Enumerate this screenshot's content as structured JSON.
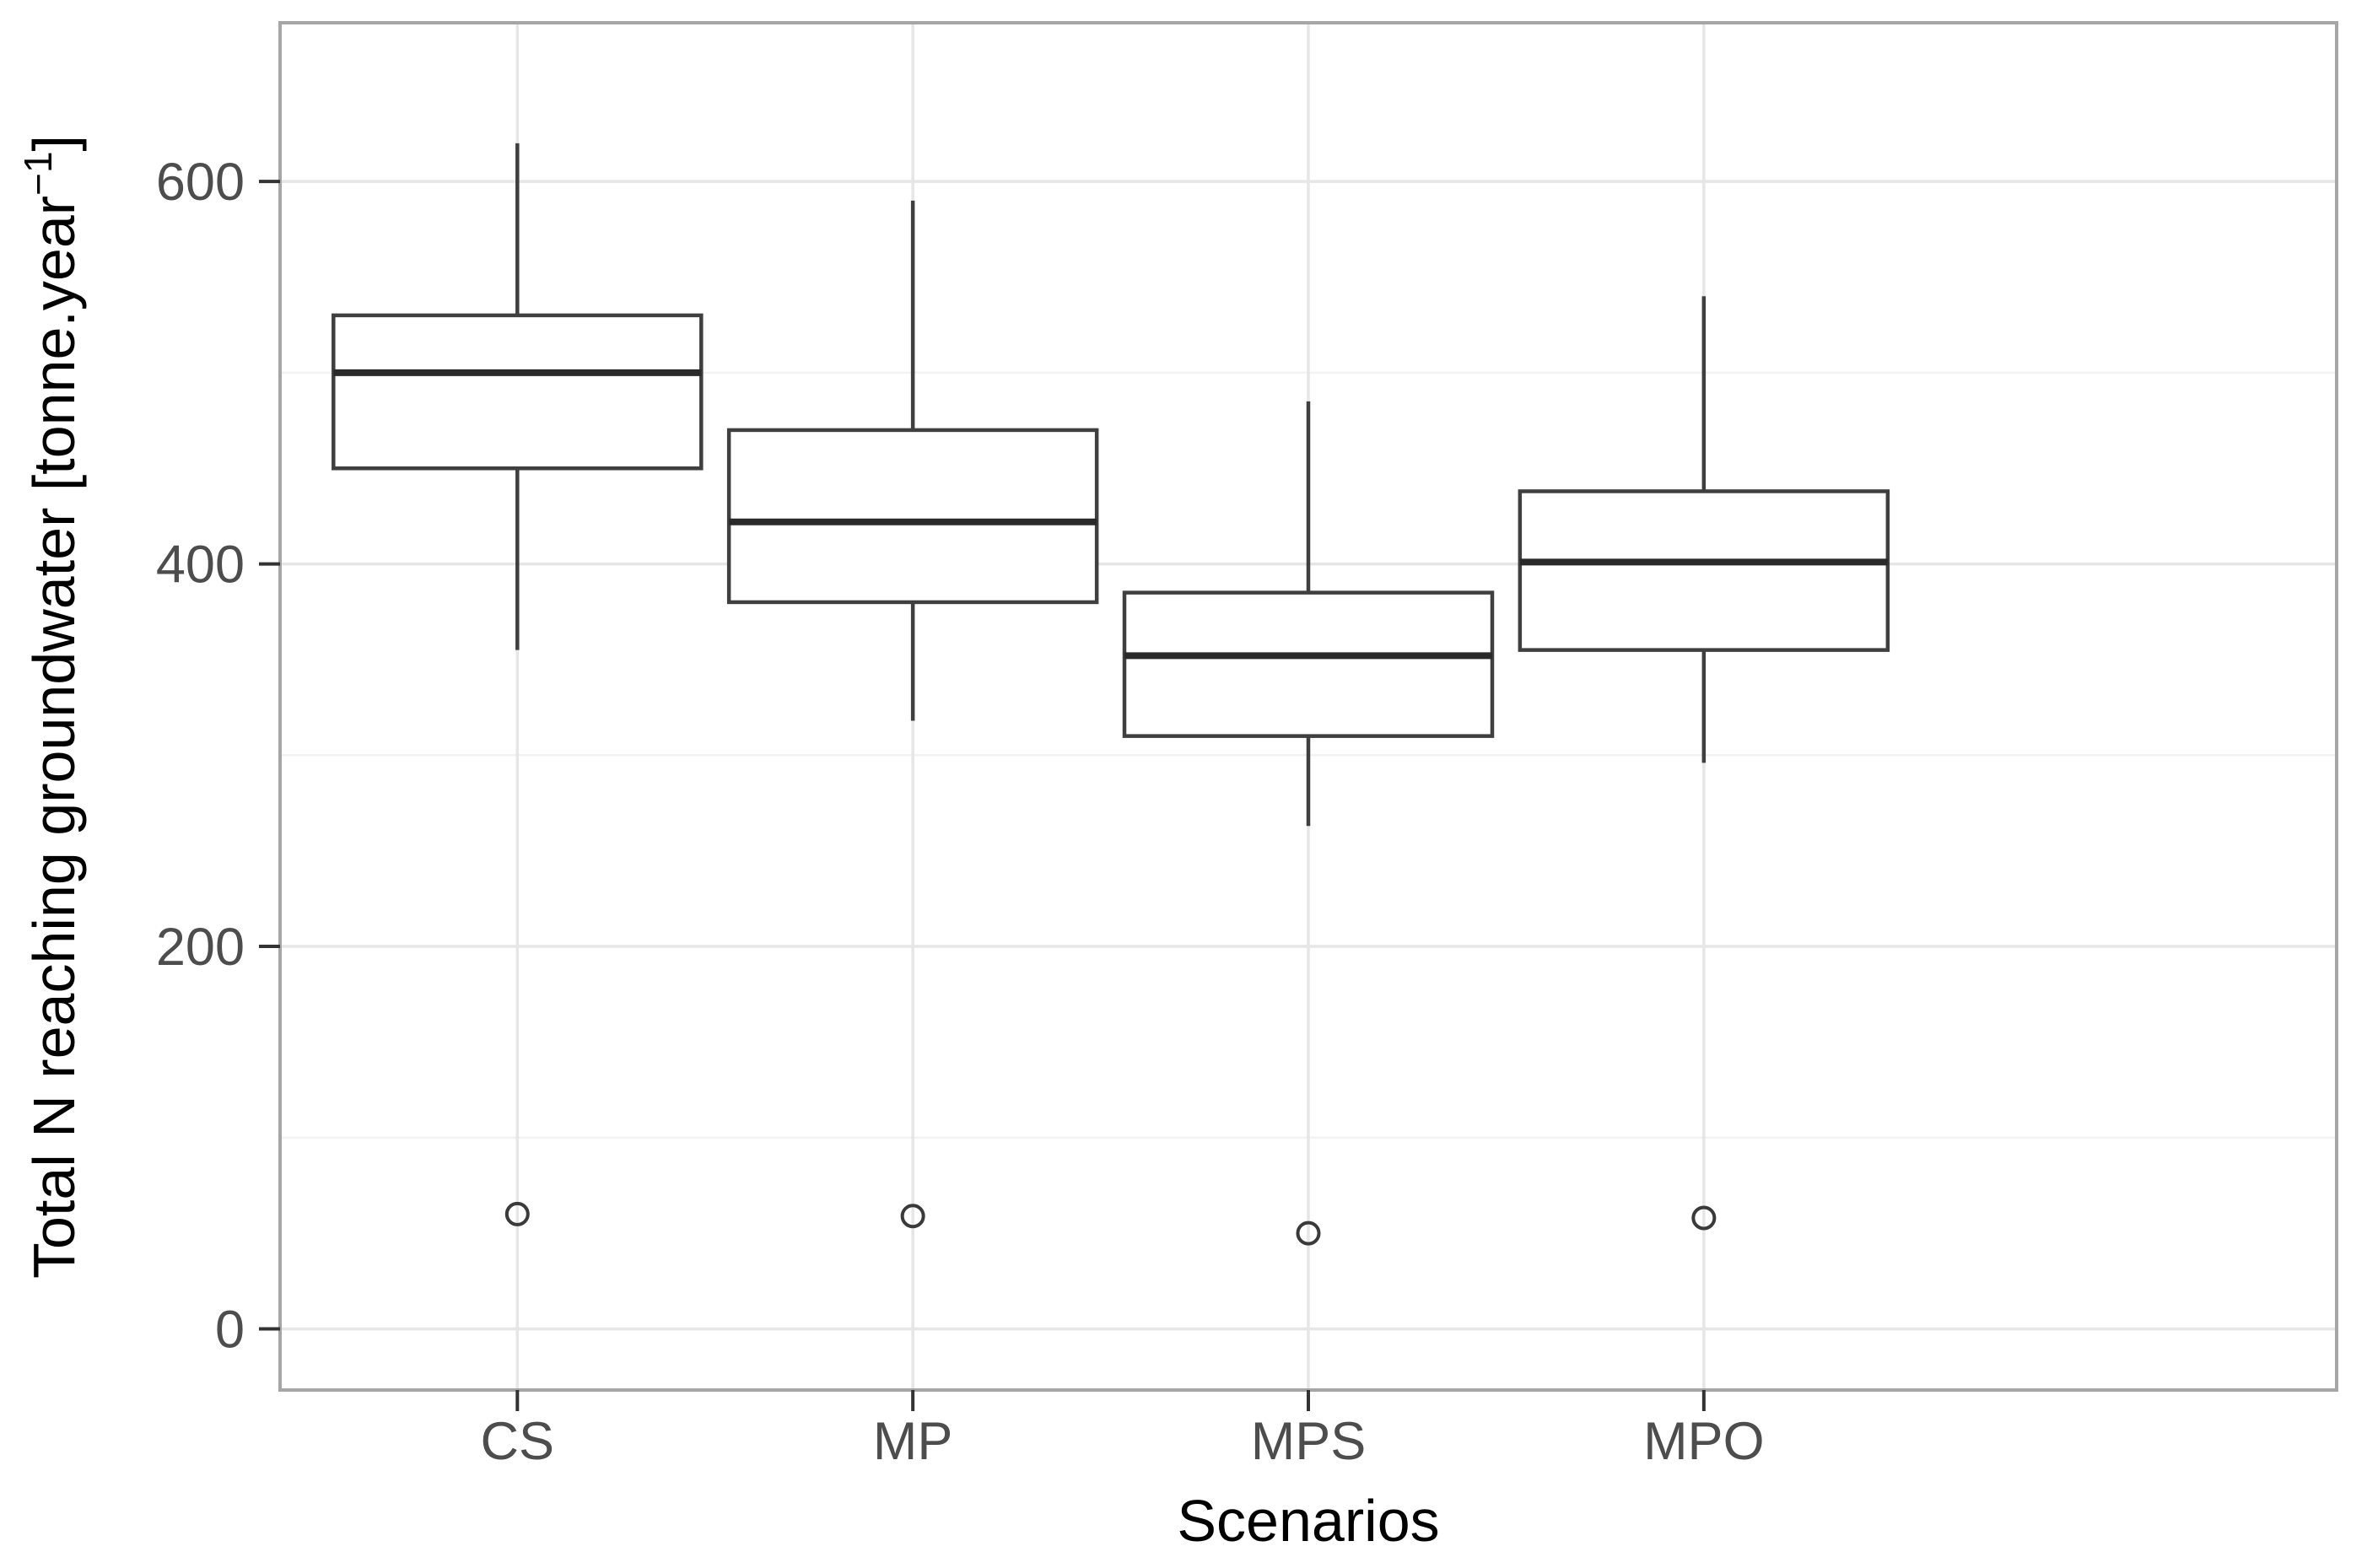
{
  "figure": {
    "kind": "boxplot",
    "background": "#ffffff"
  },
  "chart_data": {
    "type": "box",
    "title": "",
    "xlabel": "Scenarios",
    "ylabel": "Total N reaching groundwater [tonne.year⁻¹]",
    "ylabel_parts": {
      "main": "Total N reaching groundwater [tonne.year",
      "sup": "−1",
      "end": "]"
    },
    "categories": [
      "CS",
      "MP",
      "MPS",
      "MPO"
    ],
    "series": [
      {
        "label": "CS",
        "whisker_low": 355,
        "q1": 450,
        "median": 500,
        "q3": 530,
        "whisker_high": 620,
        "outliers": [
          60
        ]
      },
      {
        "label": "MP",
        "whisker_low": 318,
        "q1": 380,
        "median": 422,
        "q3": 470,
        "whisker_high": 590,
        "outliers": [
          59
        ]
      },
      {
        "label": "MPS",
        "whisker_low": 263,
        "q1": 310,
        "median": 352,
        "q3": 385,
        "whisker_high": 485,
        "outliers": [
          50
        ]
      },
      {
        "label": "MPO",
        "whisker_low": 296,
        "q1": 355,
        "median": 401,
        "q3": 438,
        "whisker_high": 540,
        "outliers": [
          58
        ]
      }
    ],
    "y_axis": {
      "ticks": [
        0,
        200,
        400,
        600
      ],
      "minor_ticks": [
        100,
        300,
        500
      ],
      "ylim": [
        -32,
        683
      ]
    },
    "x_axis": {
      "tick_labels": [
        "CS",
        "MP",
        "MPS",
        "MPO"
      ]
    },
    "grid": "major-and-minor, horizontal + vertical category lines",
    "legend_position": "none"
  },
  "colors": {
    "panel_background": "#ffffff",
    "panel_border": "#a6a6a6",
    "grid_major": "#e6e6e6",
    "grid_minor": "#f2f2f2",
    "box_stroke": "#3f3f3f",
    "box_fill": "#ffffff",
    "median_stroke": "#2a2a2a",
    "whisker_stroke": "#3f3f3f",
    "outlier_stroke": "#3a3a3a",
    "tick_mark": "#333333",
    "tick_label": "#4d4d4d",
    "axis_title": "#000000"
  }
}
